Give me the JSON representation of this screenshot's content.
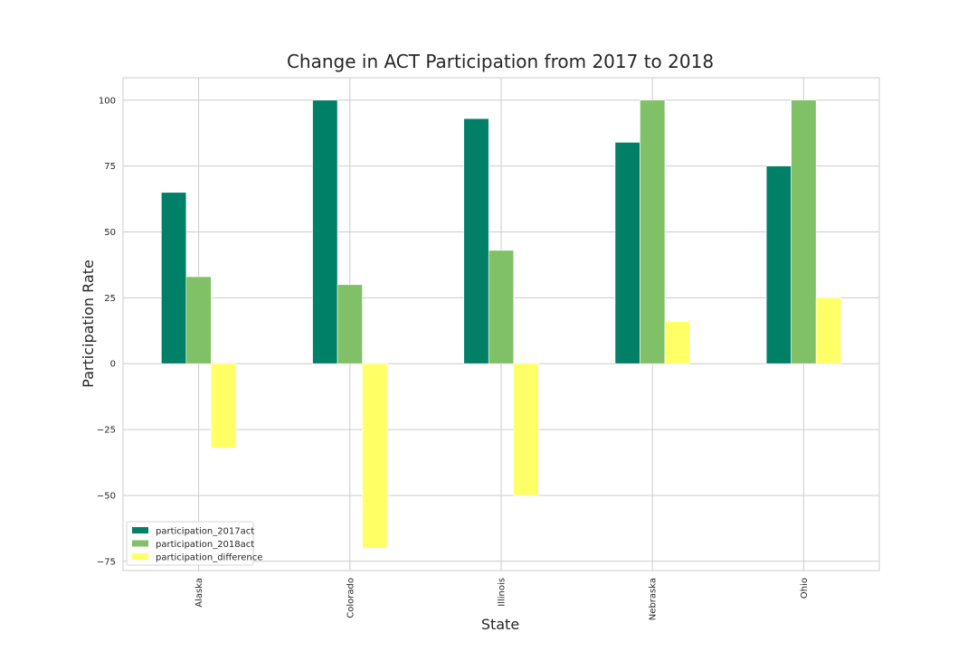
{
  "chart_data": {
    "type": "bar",
    "title": "Change in ACT Participation from 2017 to 2018",
    "xlabel": "State",
    "ylabel": "Participation Rate",
    "categories": [
      "Alaska",
      "Colorado",
      "Illinois",
      "Nebraska",
      "Ohio"
    ],
    "series": [
      {
        "name": "participation_2017act",
        "color": "#008066",
        "values": [
          65,
          100,
          93,
          84,
          75
        ]
      },
      {
        "name": "participation_2018act",
        "color": "#80c066",
        "values": [
          33,
          30,
          43,
          100,
          100
        ]
      },
      {
        "name": "participation_difference",
        "color": "#ffff66",
        "values": [
          -32,
          -70,
          -50,
          16,
          25
        ]
      }
    ],
    "yticks": [
      -75,
      -50,
      -25,
      0,
      25,
      50,
      75,
      100
    ],
    "ylim": [
      -78.5,
      108.5
    ],
    "grid": true,
    "legend_position": "lower-left"
  }
}
